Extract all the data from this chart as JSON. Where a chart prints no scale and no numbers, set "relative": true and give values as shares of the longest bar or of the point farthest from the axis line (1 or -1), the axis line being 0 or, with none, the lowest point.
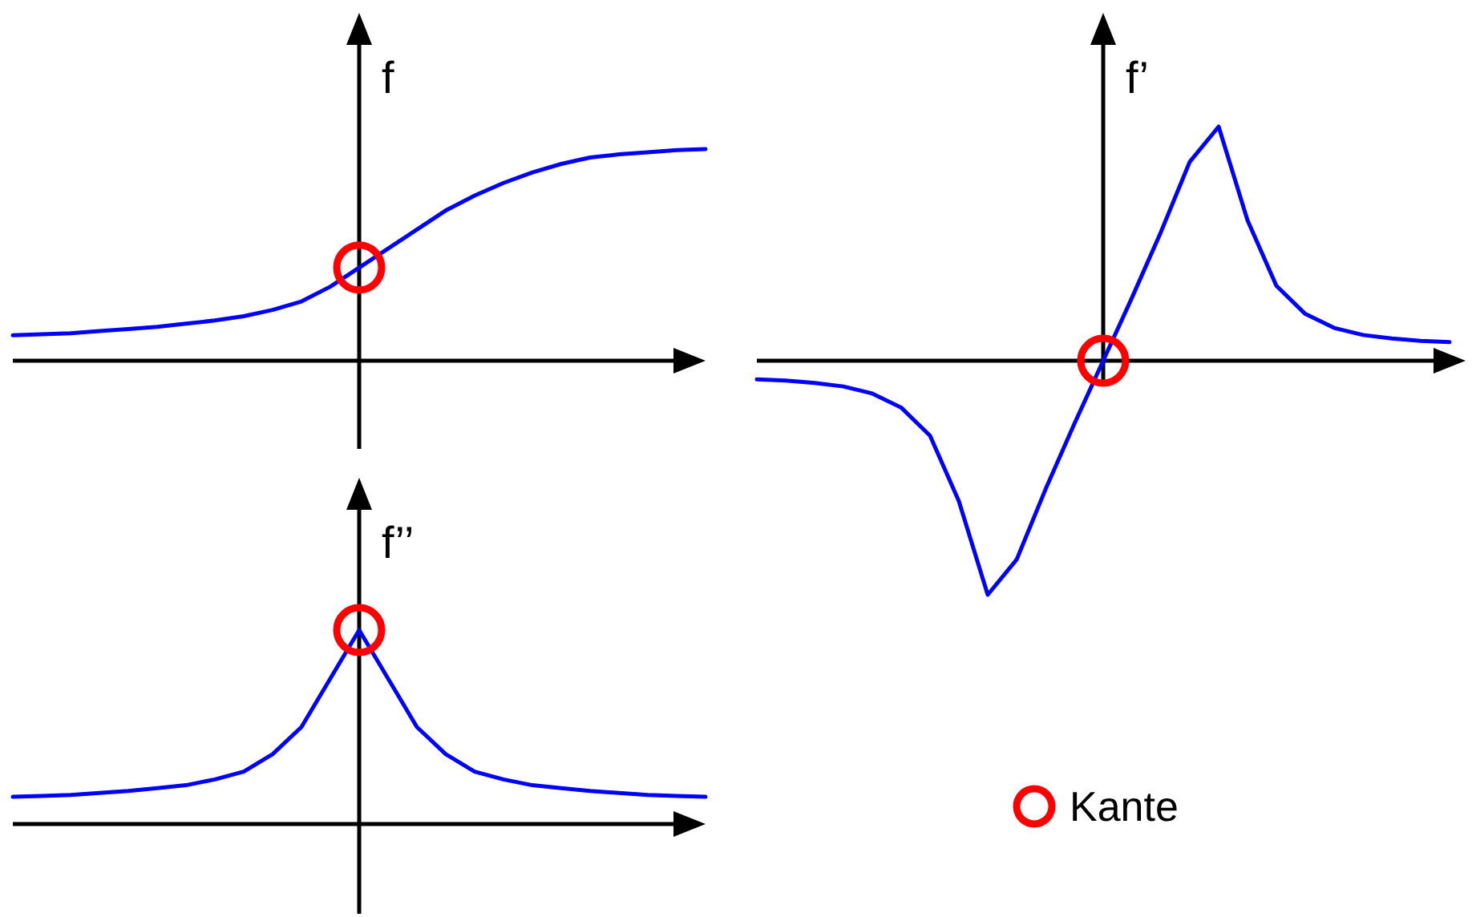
{
  "chart_data": [
    {
      "type": "line",
      "ylabel": "f",
      "relative": true,
      "categories": [
        null,
        null,
        null,
        null,
        null,
        null,
        null,
        null,
        null,
        null,
        null,
        null,
        null,
        null,
        null,
        null,
        null,
        null,
        null,
        null,
        null,
        null,
        null,
        null,
        null
      ],
      "series": [
        {
          "color": "#0000ff",
          "values": [
            0.12,
            0.125,
            0.13,
            0.14,
            0.15,
            0.16,
            0.175,
            0.19,
            0.21,
            0.24,
            0.28,
            0.35,
            0.44,
            0.53,
            0.62,
            0.71,
            0.78,
            0.84,
            0.89,
            0.93,
            0.96,
            0.975,
            0.985,
            0.995,
            1
          ]
        }
      ]
    },
    {
      "type": "line",
      "ylabel": "f’",
      "relative": true,
      "annotations": [
        "Kante"
      ],
      "categories": [
        null,
        null,
        null,
        null,
        null,
        null,
        null,
        null,
        null,
        null,
        null,
        null,
        null,
        null,
        null,
        null,
        null,
        null,
        null,
        null,
        null,
        null,
        null,
        null,
        null
      ],
      "series": [
        {
          "color": "#0000ff",
          "values": [
            -0.08,
            -0.085,
            -0.095,
            -0.11,
            -0.14,
            -0.2,
            -0.32,
            -0.6,
            -1,
            -0.85,
            -0.55,
            -0.27,
            0,
            0.27,
            0.55,
            0.85,
            1,
            0.6,
            0.32,
            0.2,
            0.14,
            0.11,
            0.095,
            0.085,
            0.08
          ]
        }
      ]
    },
    {
      "type": "line",
      "ylabel": "f’’",
      "relative": true,
      "categories": [
        null,
        null,
        null,
        null,
        null,
        null,
        null,
        null,
        null,
        null,
        null,
        null,
        null,
        null,
        null,
        null,
        null,
        null,
        null,
        null,
        null,
        null,
        null,
        null,
        null
      ],
      "series": [
        {
          "color": "#0000ff",
          "values": [
            0.14,
            0.145,
            0.15,
            0.16,
            0.17,
            0.185,
            0.2,
            0.23,
            0.27,
            0.36,
            0.5,
            0.75,
            1,
            0.75,
            0.5,
            0.36,
            0.27,
            0.23,
            0.2,
            0.185,
            0.17,
            0.16,
            0.15,
            0.145,
            0.14
          ]
        }
      ]
    }
  ]
}
